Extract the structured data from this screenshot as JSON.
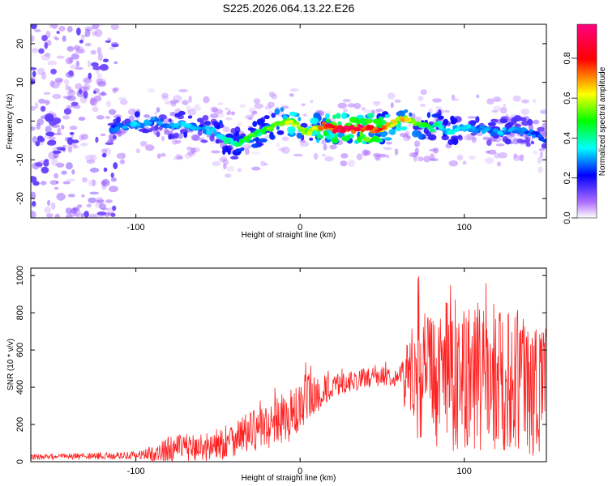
{
  "figure": {
    "title": "S225.2026.064.13.22.E26"
  },
  "chart_data": [
    {
      "type": "heatmap",
      "panel": "spectrogram",
      "xlabel": "Height of straight line (km)",
      "ylabel": "Frequency (Hz)",
      "xlim": [
        -164,
        150
      ],
      "ylim": [
        -25,
        25
      ],
      "xticks": [
        -100,
        0,
        100
      ],
      "yticks": [
        -20,
        -10,
        0,
        10,
        20
      ],
      "colorbar": {
        "label": "Normalized spectral amplitude",
        "range": [
          0.0,
          0.97
        ],
        "ticks": [
          0.0,
          0.2,
          0.4,
          0.6,
          0.8
        ],
        "tick_labels": [
          "0.0",
          "0.2",
          "0.4",
          "0.6",
          "0.8"
        ],
        "colors": [
          "#ffffff",
          "#a020f0",
          "#0000ff",
          "#00ffff",
          "#00ff00",
          "#ffff00",
          "#ff0000",
          "#ff00ff"
        ]
      },
      "ridge": {
        "x": [
          -115,
          -100,
          -90,
          -80,
          -70,
          -60,
          -50,
          -45,
          -40,
          -35,
          -30,
          -25,
          -20,
          -15,
          -10,
          -5,
          0,
          5,
          10,
          15,
          20,
          30,
          40,
          45,
          50,
          55,
          60,
          65,
          70,
          75,
          80,
          85,
          90,
          95,
          100,
          110,
          120,
          130,
          140,
          150
        ],
        "freq_hz": [
          -2,
          -1,
          0,
          -1,
          -1,
          -2,
          -3,
          -5,
          -6,
          -5,
          -4,
          -3,
          -2,
          -1,
          0,
          0,
          -2,
          -3,
          -2,
          -1,
          -2,
          -2,
          -2,
          -2,
          -2,
          -1,
          0,
          1,
          -1,
          -1,
          -2,
          -1,
          -3,
          -2,
          -2,
          -2,
          -3,
          -2,
          -3,
          -5
        ],
        "amplitude": [
          0.3,
          0.35,
          0.3,
          0.3,
          0.35,
          0.3,
          0.4,
          0.45,
          0.45,
          0.5,
          0.55,
          0.5,
          0.55,
          0.55,
          0.6,
          0.65,
          0.55,
          0.6,
          0.7,
          0.85,
          0.9,
          0.95,
          0.95,
          0.9,
          0.8,
          0.65,
          0.7,
          0.7,
          0.55,
          0.5,
          0.45,
          0.4,
          0.35,
          0.4,
          0.35,
          0.3,
          0.35,
          0.3,
          0.3,
          0.25
        ]
      },
      "noise_region_x": [
        -164,
        -112
      ]
    },
    {
      "type": "line",
      "panel": "snr",
      "xlabel": "Height of straight line (km)",
      "ylabel": "SNR (10 * v/v)",
      "xlim": [
        -164,
        150
      ],
      "ylim": [
        0,
        1040
      ],
      "xticks": [
        -100,
        0,
        100
      ],
      "yticks": [
        0,
        200,
        400,
        600,
        800,
        1000
      ],
      "color": "#ff2020",
      "trend": {
        "x": [
          -164,
          -140,
          -120,
          -100,
          -85,
          -80,
          -70,
          -60,
          -50,
          -45,
          -40,
          -35,
          -30,
          -25,
          -20,
          -15,
          -10,
          -5,
          0,
          5,
          10,
          15,
          20,
          25,
          30,
          40,
          50,
          55,
          60,
          63,
          65,
          70,
          80,
          90,
          100,
          110,
          120,
          130,
          140,
          150
        ],
        "snr": [
          25,
          28,
          30,
          35,
          45,
          70,
          75,
          75,
          90,
          110,
          130,
          150,
          160,
          170,
          190,
          210,
          230,
          250,
          280,
          320,
          360,
          380,
          400,
          420,
          430,
          450,
          460,
          460,
          450,
          455,
          450,
          480,
          450,
          460,
          470,
          460,
          450,
          440,
          420,
          400
        ]
      },
      "spread": {
        "x": [
          -164,
          -100,
          -80,
          -60,
          -40,
          -20,
          0,
          5,
          20,
          60,
          65,
          70,
          90,
          100,
          120,
          150
        ],
        "amount": [
          15,
          20,
          70,
          80,
          100,
          120,
          150,
          150,
          60,
          50,
          200,
          350,
          400,
          420,
          400,
          380
        ]
      }
    }
  ]
}
